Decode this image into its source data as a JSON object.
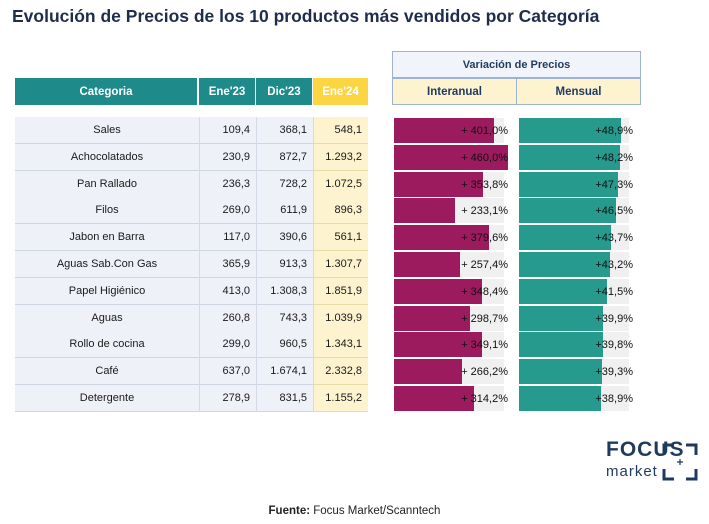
{
  "title": "Evolución de Precios de los 10 productos más vendidos por Categoría",
  "variacion_header": "Variación de Precios",
  "columns": {
    "categoria": "Categoria",
    "ene23": "Ene'23",
    "dic23": "Dic'23",
    "ene24": "Ene'24",
    "interanual": "Interanual",
    "mensual": "Mensual"
  },
  "colors": {
    "teal_header": "#1f8a8a",
    "yellow_header": "#fbd542",
    "interanual_bar": "#9c1a5e",
    "mensual_bar": "#269a8c",
    "bar_track": "#f0f0f0"
  },
  "chart_data": {
    "type": "table",
    "rows": [
      {
        "categoria": "Sales",
        "ene23": "109,4",
        "dic23": "368,1",
        "ene24": "548,1",
        "interanual": "+ 401,0%",
        "interanual_value": 401.0,
        "mensual": "+48,9%",
        "mensual_value": 48.9
      },
      {
        "categoria": "Achocolatados",
        "ene23": "230,9",
        "dic23": "872,7",
        "ene24": "1.293,2",
        "interanual": "+ 460,0%",
        "interanual_value": 460.0,
        "mensual": "+48,2%",
        "mensual_value": 48.2
      },
      {
        "categoria": "Pan Rallado",
        "ene23": "236,3",
        "dic23": "728,2",
        "ene24": "1.072,5",
        "interanual": "+ 353,8%",
        "interanual_value": 353.8,
        "mensual": "+47,3%",
        "mensual_value": 47.3
      },
      {
        "categoria": "Filos",
        "ene23": "269,0",
        "dic23": "611,9",
        "ene24": "896,3",
        "interanual": "+ 233,1%",
        "interanual_value": 233.1,
        "mensual": "+46,5%",
        "mensual_value": 46.5
      },
      {
        "categoria": "Jabon en Barra",
        "ene23": "117,0",
        "dic23": "390,6",
        "ene24": "561,1",
        "interanual": "+ 379,6%",
        "interanual_value": 379.6,
        "mensual": "+43,7%",
        "mensual_value": 43.7
      },
      {
        "categoria": "Aguas Sab.Con Gas",
        "ene23": "365,9",
        "dic23": "913,3",
        "ene24": "1.307,7",
        "interanual": "+ 257,4%",
        "interanual_value": 257.4,
        "mensual": "+43,2%",
        "mensual_value": 43.2
      },
      {
        "categoria": "Papel Higiénico",
        "ene23": "413,0",
        "dic23": "1.308,3",
        "ene24": "1.851,9",
        "interanual": "+ 348,4%",
        "interanual_value": 348.4,
        "mensual": "+41,5%",
        "mensual_value": 41.5
      },
      {
        "categoria": "Aguas",
        "ene23": "260,8",
        "dic23": "743,3",
        "ene24": "1.039,9",
        "interanual": "+ 298,7%",
        "interanual_value": 298.7,
        "mensual": "+39,9%",
        "mensual_value": 39.9
      },
      {
        "categoria": "Rollo de cocina",
        "ene23": "299,0",
        "dic23": "960,5",
        "ene24": "1.343,1",
        "interanual": "+ 349,1%",
        "interanual_value": 349.1,
        "mensual": "+39,8%",
        "mensual_value": 39.8
      },
      {
        "categoria": "Café",
        "ene23": "637,0",
        "dic23": "1.674,1",
        "ene24": "2.332,8",
        "interanual": "+ 266,2%",
        "interanual_value": 266.2,
        "mensual": "+39,3%",
        "mensual_value": 39.3
      },
      {
        "categoria": "Detergente",
        "ene23": "278,9",
        "dic23": "831,5",
        "ene24": "1.155,2",
        "interanual": "+ 314,2%",
        "interanual_value": 314.2,
        "mensual": "+38,9%",
        "mensual_value": 38.9
      }
    ]
  },
  "source": {
    "label": "Fuente:",
    "text": " Focus Market/Scanntech"
  },
  "logo": {
    "line1": "FOCUS",
    "line2": "market"
  }
}
